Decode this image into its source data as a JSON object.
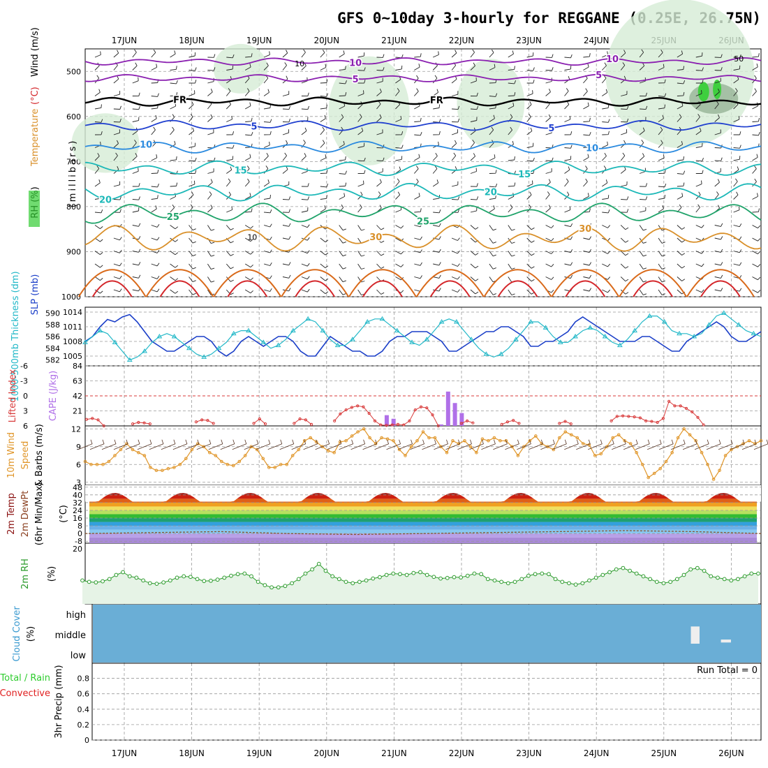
{
  "title": "GFS 0~10day 3-hourly for REGGANE (0.25E, 26.75N)",
  "dates": [
    "17JUN",
    "18JUN",
    "19JUN",
    "20JUN",
    "21JUN",
    "22JUN",
    "23JUN",
    "24JUN",
    "25JUN",
    "26JUN"
  ],
  "colors": {
    "purple": "#8a1fb0",
    "blue": "#1f3fcf",
    "lightblue": "#2a8adf",
    "teal": "#1cb8b8",
    "green": "#1fa36a",
    "orange": "#d9902a",
    "darkorange": "#d96a1a",
    "red": "#d4262a",
    "slp": "#1a3ec8",
    "thick": "#22b8c8",
    "cape": "#b070e8",
    "li": "#d83a3a",
    "wind": "#e0962a",
    "rh": "#2a9a2a",
    "cloud": "#6aaed6"
  },
  "chart_data": [
    {
      "type": "contour",
      "name": "upper-air",
      "ylabel": "(millibars)",
      "labels": {
        "rh": "RH (%)",
        "temp": "Temperature",
        "unit": "(°C)",
        "wind": "Wind (m/s)"
      },
      "yticks": [
        "500",
        "600",
        "700",
        "800",
        "900",
        "1000"
      ],
      "ylim": [
        450,
        1000
      ],
      "isotherms": [
        {
          "value": "10",
          "level": 478,
          "amp": 5,
          "color": "purple",
          "label_pos": [
            0.4,
            0.78
          ]
        },
        {
          "value": "5",
          "level": 515,
          "amp": 5,
          "color": "purple",
          "label_pos": [
            0.4,
            0.76
          ]
        },
        {
          "value": "FR",
          "level": 567,
          "amp": 6,
          "color": "black",
          "label_pos": [
            0.14,
            0.52
          ]
        },
        {
          "value": "5",
          "level": 620,
          "amp": 7,
          "color": "blue",
          "label_pos": [
            0.25,
            0.69
          ]
        },
        {
          "value": "10",
          "level": 668,
          "amp": 8,
          "color": "lightblue",
          "label_pos": [
            0.09,
            0.75
          ]
        },
        {
          "value": "15",
          "level": 715,
          "amp": 10,
          "color": "teal",
          "label_pos": [
            0.23,
            0.65
          ]
        },
        {
          "value": "20",
          "level": 768,
          "amp": 12,
          "color": "teal",
          "label_pos": [
            0.03,
            0.6
          ]
        },
        {
          "value": "25",
          "level": 815,
          "amp": 14,
          "color": "green",
          "label_pos": [
            0.13,
            0.5
          ]
        },
        {
          "value": "30",
          "level": 870,
          "amp": 18,
          "color": "orange",
          "label_pos": [
            0.43,
            0.74
          ]
        }
      ],
      "small_labels": [
        "10",
        "10",
        "50"
      ]
    },
    {
      "type": "line",
      "name": "slp-thickness",
      "ylabel_left": "1000-500mb Thickness (dm)",
      "ylabel_right": "SLP (mb)",
      "yticks_left": [
        "582",
        "584",
        "586",
        "588",
        "590"
      ],
      "yticks_right": [
        "1005",
        "1008",
        "1011",
        "1014"
      ],
      "ylim_left": [
        581,
        591
      ],
      "ylim_right": [
        1003,
        1015
      ],
      "slp": [
        1008,
        1009,
        1011,
        1012.5,
        1012,
        1013,
        1013.5,
        1012,
        1010,
        1008,
        1007,
        1006,
        1006,
        1007,
        1008,
        1009,
        1009,
        1008,
        1006,
        1005,
        1006,
        1008,
        1009,
        1008,
        1007,
        1008,
        1009,
        1009,
        1008,
        1006,
        1005,
        1005,
        1007,
        1009,
        1008,
        1007,
        1006,
        1006,
        1005,
        1005,
        1006,
        1008,
        1009,
        1009,
        1010,
        1010,
        1010,
        1009,
        1008,
        1006,
        1006,
        1007,
        1008,
        1009,
        1010,
        1010,
        1011,
        1011,
        1010,
        1009,
        1007,
        1007,
        1008,
        1008,
        1009,
        1010,
        1012,
        1013,
        1012,
        1011,
        1010,
        1009,
        1008,
        1008,
        1008,
        1009,
        1009,
        1008,
        1007,
        1006,
        1006,
        1008,
        1009,
        1010,
        1011,
        1012,
        1011,
        1009,
        1008,
        1008,
        1009,
        1010
      ],
      "thickness": [
        585,
        586,
        587,
        586.5,
        585,
        583.5,
        582,
        582.5,
        583.5,
        585,
        586,
        586.5,
        586,
        585,
        584,
        583,
        582.5,
        583,
        584,
        585,
        586.5,
        587,
        587,
        586,
        585,
        584,
        584.5,
        585.5,
        587,
        588,
        589,
        588.5,
        587,
        585.5,
        584.5,
        584.5,
        585.5,
        587,
        588.5,
        589,
        589,
        588,
        587,
        586,
        585,
        584.5,
        585.5,
        587,
        588.5,
        589,
        588.5,
        587,
        585.5,
        584,
        583,
        582.5,
        583,
        584,
        585.5,
        587,
        588.5,
        588.5,
        587.5,
        586,
        585,
        585,
        586,
        587,
        587.5,
        587,
        586,
        585,
        584.5,
        585.5,
        587,
        588.5,
        589.5,
        589.5,
        588.5,
        587,
        586.5,
        586.5,
        586,
        586.5,
        588,
        589.5,
        590,
        589,
        588,
        587,
        586.5,
        586
      ]
    },
    {
      "type": "bar+line",
      "name": "cape-li",
      "ylabel_left": "Lifted Index",
      "ylabel_right": "CAPE (J/kg)",
      "yticks_li": [
        "-6",
        "-3",
        "0",
        "3",
        "6"
      ],
      "yticks_cape": [
        "84",
        "63",
        "42",
        "21"
      ],
      "cape": [
        [
          48,
          15
        ],
        [
          49,
          10
        ],
        [
          56,
          2
        ],
        [
          57,
          48
        ],
        [
          58,
          32
        ],
        [
          59,
          18
        ]
      ],
      "li_segments": [
        [
          [
            0,
            4.7
          ],
          [
            1,
            4.5
          ],
          [
            2,
            4.8
          ],
          [
            3,
            6
          ]
        ],
        [
          [
            8,
            5.6
          ],
          [
            9,
            5.3
          ],
          [
            10,
            5.4
          ],
          [
            11,
            5.6
          ]
        ],
        [
          [
            19,
            5.2
          ],
          [
            20,
            4.8
          ],
          [
            21,
            4.9
          ],
          [
            22,
            5.5
          ]
        ],
        [
          [
            29,
            5.5
          ],
          [
            30,
            4.6
          ],
          [
            31,
            5.6
          ]
        ],
        [
          [
            36,
            5.5
          ],
          [
            37,
            4.6
          ],
          [
            38,
            4.8
          ],
          [
            39,
            5.7
          ]
        ],
        [
          [
            43,
            5
          ],
          [
            44,
            3.6
          ],
          [
            45,
            2.8
          ],
          [
            46,
            2.3
          ],
          [
            47,
            2
          ],
          [
            48,
            2.2
          ],
          [
            49,
            3.5
          ],
          [
            50,
            5
          ],
          [
            51,
            5.8
          ],
          [
            52,
            5.9
          ],
          [
            53,
            5.8
          ],
          [
            54,
            5.7
          ],
          [
            55,
            5.8
          ],
          [
            56,
            5
          ],
          [
            57,
            2.8
          ],
          [
            58,
            2.2
          ],
          [
            59,
            2.4
          ],
          [
            60,
            3.8
          ],
          [
            61,
            6
          ]
        ],
        [
          [
            65,
            5.5
          ],
          [
            66,
            5
          ],
          [
            67,
            5.4
          ]
        ],
        [
          [
            72,
            5.7
          ],
          [
            73,
            5.2
          ],
          [
            74,
            4.9
          ],
          [
            75,
            5.5
          ]
        ],
        [
          [
            82,
            5.5
          ],
          [
            83,
            5.1
          ],
          [
            84,
            5.6
          ]
        ],
        [
          [
            91,
            5
          ],
          [
            92,
            4.1
          ],
          [
            93,
            4
          ],
          [
            94,
            4.1
          ],
          [
            95,
            4.2
          ],
          [
            96,
            4.4
          ],
          [
            97,
            5
          ],
          [
            98,
            5.1
          ],
          [
            99,
            5.3
          ],
          [
            100,
            4.5
          ],
          [
            101,
            1.1
          ],
          [
            102,
            2
          ],
          [
            103,
            2
          ],
          [
            104,
            2.5
          ],
          [
            105,
            3.2
          ],
          [
            106,
            4.3
          ],
          [
            107,
            5.8
          ]
        ]
      ]
    },
    {
      "type": "line",
      "name": "wind10m",
      "ylabel": "10m Wind Speed & Barbs (m/s)",
      "yticks": [
        "3",
        "6",
        "9",
        "12"
      ],
      "ylim": [
        3,
        12
      ],
      "speed": [
        6.5,
        6,
        6,
        6,
        6.5,
        7.5,
        8.5,
        9.5,
        8.5,
        8,
        7.5,
        5.5,
        5,
        5,
        5.3,
        5.5,
        6,
        7,
        8.5,
        9.5,
        9,
        8,
        7.5,
        6.5,
        6,
        5.8,
        6.5,
        7.5,
        9,
        8.5,
        7,
        5.5,
        5.5,
        6,
        6,
        7.5,
        8.5,
        10,
        10.5,
        9.8,
        9,
        8.3,
        8,
        9.8,
        10,
        10.8,
        11.5,
        12,
        10.5,
        9.5,
        10.5,
        10.3,
        10,
        8.5,
        7.5,
        9,
        10,
        11.5,
        10.5,
        10.5,
        9,
        8,
        10,
        9.5,
        10,
        9,
        8,
        10.3,
        10,
        10.5,
        10,
        10,
        9,
        7.5,
        9,
        10,
        10.8,
        9.5,
        9,
        8.5,
        10.5,
        11.5,
        11,
        10.5,
        9.5,
        9.3,
        7.5,
        7.8,
        9,
        10.5,
        11,
        10,
        9.5,
        8,
        6,
        3.8,
        4.5,
        5.3,
        6.5,
        8,
        10.5,
        12,
        11,
        10,
        8,
        6,
        3.5,
        5,
        7.5,
        8.5,
        9,
        9.5,
        10,
        9.5,
        10
      ]
    },
    {
      "type": "area",
      "name": "temp2m",
      "ylabel": "2m Temp 2m DewPt (6hr Min/Max) (°C)",
      "yticks": [
        "-8",
        "0",
        "8",
        "16",
        "24",
        "32",
        "40",
        "48"
      ],
      "ylim": [
        -10,
        50
      ],
      "tmax": 42,
      "tmin": 33,
      "dewpt": [
        0,
        1,
        2,
        0,
        -1,
        0,
        1,
        2,
        3,
        2,
        0
      ]
    },
    {
      "type": "area",
      "name": "rh2m",
      "ylabel": "2m RH (%)",
      "yticks": [
        "20"
      ],
      "ylim": [
        0,
        22
      ],
      "rh": [
        8.5,
        8,
        7.8,
        8.2,
        9,
        10.5,
        11.5,
        10,
        9.5,
        8.5,
        7.5,
        7.3,
        7.8,
        8.5,
        9.5,
        10,
        9.8,
        9,
        8.3,
        8.4,
        8.8,
        9.5,
        10.2,
        10.8,
        11,
        10,
        8,
        6.8,
        6,
        6,
        6.5,
        7.5,
        9,
        11,
        12.5,
        14.5,
        12,
        10,
        9,
        8,
        7.5,
        8,
        8.5,
        9.2,
        9.7,
        10.5,
        11,
        10.8,
        10.5,
        11.2,
        11.5,
        10.5,
        9.8,
        9.2,
        9.4,
        9.7,
        9.6,
        10.2,
        11,
        10.8,
        9,
        8.5,
        8,
        7.5,
        8,
        9,
        10.2,
        10.8,
        11,
        10.8,
        9,
        8,
        7.5,
        7,
        7.5,
        8.5,
        9.5,
        10.5,
        11.5,
        12.5,
        13,
        12,
        11,
        10,
        9,
        8,
        7.5,
        8,
        9,
        10.5,
        12.5,
        13,
        12,
        10,
        9.5,
        9,
        8.5,
        9,
        10,
        11,
        11
      ]
    },
    {
      "type": "heatmap",
      "name": "cloud",
      "ylabel": "Cloud Cover (%)",
      "levels": [
        "high",
        "middle",
        "low"
      ],
      "gaps": [
        [
          0.895,
          0.908,
          0.38,
          0.67
        ],
        [
          0.94,
          0.955,
          0.6,
          0.65
        ]
      ]
    },
    {
      "type": "bar",
      "name": "precip",
      "ylabel": "3hr Precip (mm)",
      "legend": [
        "Total / Rain",
        "Convective"
      ],
      "yticks": [
        "0",
        "0.2",
        "0.4",
        "0.6",
        "0.8"
      ],
      "ylim": [
        0,
        1
      ],
      "run_total": "Run Total = 0",
      "values": []
    }
  ]
}
